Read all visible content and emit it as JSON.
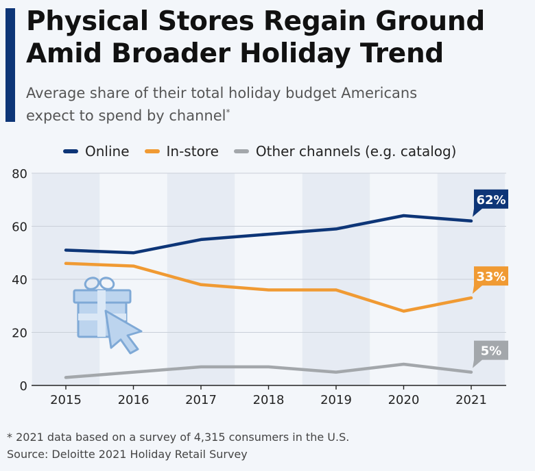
{
  "header": {
    "title_line1": "Physical Stores Regain Ground",
    "title_line2": "Amid Broader Holiday Trend",
    "subtitle_line1": "Average share of their total holiday budget Americans",
    "subtitle_line2": "expect to spend by channel",
    "subtitle_mark": "*"
  },
  "colors": {
    "accent": "#0d3577",
    "online": "#0d3577",
    "instore": "#f09a33",
    "other": "#a3a7ab",
    "band": "#e6ebf3"
  },
  "icon": "gift-with-cursor-icon",
  "chart_data": {
    "type": "line",
    "x": [
      "2015",
      "2016",
      "2017",
      "2018",
      "2019",
      "2020",
      "2021"
    ],
    "ylim": [
      0,
      80
    ],
    "yticks": [
      0,
      20,
      40,
      60,
      80
    ],
    "grid": true,
    "legend_position": "top",
    "series": [
      {
        "name": "Online",
        "color": "#0d3577",
        "values": [
          51,
          50,
          55,
          57,
          59,
          64,
          62
        ],
        "end_label": "62%"
      },
      {
        "name": "In-store",
        "color": "#f09a33",
        "values": [
          46,
          45,
          38,
          36,
          36,
          28,
          33
        ],
        "end_label": "33%"
      },
      {
        "name": "Other channels (e.g. catalog)",
        "color": "#a3a7ab",
        "values": [
          3,
          5,
          7,
          7,
          5,
          8,
          5
        ],
        "end_label": "5%"
      }
    ]
  },
  "footer": {
    "note": "* 2021 data based on a survey of 4,315 consumers in the U.S.",
    "source": "Source: Deloitte 2021 Holiday Retail Survey"
  }
}
